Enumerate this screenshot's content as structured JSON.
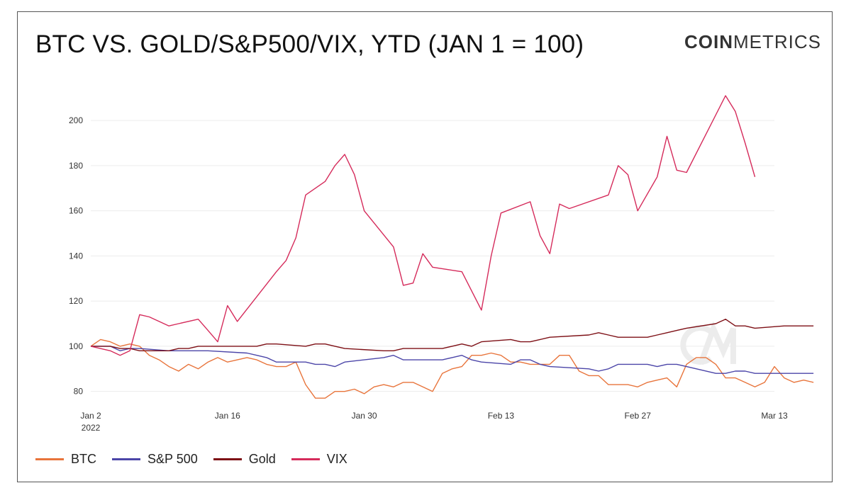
{
  "title": "BTC VS. GOLD/S&P500/VIX, YTD (JAN 1 = 100)",
  "logo": {
    "bold_part": "COIN",
    "regular_part": "METRICS"
  },
  "chart_data": {
    "type": "line",
    "title": "BTC VS. GOLD/S&P500/VIX, YTD (JAN 1 = 100)",
    "xlabel": "",
    "ylabel": "",
    "x_range": [
      "2022-01-02",
      "2022-03-13"
    ],
    "ylim": [
      73,
      222
    ],
    "yticks": [
      80,
      100,
      120,
      140,
      160,
      180,
      200
    ],
    "xticks": [
      {
        "date": "2022-01-02",
        "label": "Jan 2",
        "sublabel": "2022"
      },
      {
        "date": "2022-01-16",
        "label": "Jan 16",
        "sublabel": ""
      },
      {
        "date": "2022-01-30",
        "label": "Jan 30",
        "sublabel": ""
      },
      {
        "date": "2022-02-13",
        "label": "Feb 13",
        "sublabel": ""
      },
      {
        "date": "2022-02-27",
        "label": "Feb 27",
        "sublabel": ""
      },
      {
        "date": "2022-03-13",
        "label": "Mar 13",
        "sublabel": ""
      }
    ],
    "grid": true,
    "legend_position": "bottom-left",
    "series": [
      {
        "name": "BTC",
        "color": "#e8743b",
        "points": [
          [
            "2022-01-02",
            100
          ],
          [
            "2022-01-03",
            103
          ],
          [
            "2022-01-04",
            102
          ],
          [
            "2022-01-05",
            100
          ],
          [
            "2022-01-06",
            101
          ],
          [
            "2022-01-07",
            100
          ],
          [
            "2022-01-08",
            96
          ],
          [
            "2022-01-09",
            94
          ],
          [
            "2022-01-10",
            91
          ],
          [
            "2022-01-11",
            89
          ],
          [
            "2022-01-12",
            92
          ],
          [
            "2022-01-13",
            90
          ],
          [
            "2022-01-14",
            93
          ],
          [
            "2022-01-15",
            95
          ],
          [
            "2022-01-16",
            93
          ],
          [
            "2022-01-17",
            94
          ],
          [
            "2022-01-18",
            95
          ],
          [
            "2022-01-19",
            94
          ],
          [
            "2022-01-20",
            92
          ],
          [
            "2022-01-21",
            91
          ],
          [
            "2022-01-22",
            91
          ],
          [
            "2022-01-23",
            93
          ],
          [
            "2022-01-24",
            83
          ],
          [
            "2022-01-25",
            77
          ],
          [
            "2022-01-26",
            77
          ],
          [
            "2022-01-27",
            80
          ],
          [
            "2022-01-28",
            80
          ],
          [
            "2022-01-29",
            81
          ],
          [
            "2022-01-30",
            79
          ],
          [
            "2022-01-31",
            82
          ],
          [
            "2022-02-01",
            83
          ],
          [
            "2022-02-02",
            82
          ],
          [
            "2022-02-03",
            84
          ],
          [
            "2022-02-04",
            84
          ],
          [
            "2022-02-05",
            82
          ],
          [
            "2022-02-06",
            80
          ],
          [
            "2022-02-07",
            88
          ],
          [
            "2022-02-08",
            90
          ],
          [
            "2022-02-09",
            91
          ],
          [
            "2022-02-10",
            96
          ],
          [
            "2022-02-11",
            96
          ],
          [
            "2022-02-12",
            97
          ],
          [
            "2022-02-13",
            96
          ],
          [
            "2022-02-14",
            93
          ],
          [
            "2022-02-15",
            93
          ],
          [
            "2022-02-16",
            92
          ],
          [
            "2022-02-17",
            92
          ],
          [
            "2022-02-18",
            92
          ],
          [
            "2022-02-19",
            96
          ],
          [
            "2022-02-20",
            96
          ],
          [
            "2022-02-21",
            89
          ],
          [
            "2022-02-22",
            87
          ],
          [
            "2022-02-23",
            87
          ],
          [
            "2022-02-24",
            83
          ],
          [
            "2022-02-25",
            83
          ],
          [
            "2022-02-26",
            83
          ],
          [
            "2022-02-27",
            82
          ],
          [
            "2022-02-28",
            84
          ],
          [
            "2022-03-01",
            85
          ],
          [
            "2022-03-02",
            86
          ],
          [
            "2022-03-03",
            82
          ],
          [
            "2022-03-04",
            92
          ],
          [
            "2022-03-05",
            95
          ],
          [
            "2022-03-06",
            95
          ],
          [
            "2022-03-07",
            92
          ],
          [
            "2022-03-08",
            86
          ],
          [
            "2022-03-09",
            86
          ],
          [
            "2022-03-10",
            84
          ],
          [
            "2022-03-11",
            82
          ],
          [
            "2022-03-12",
            84
          ],
          [
            "2022-03-13",
            91
          ],
          [
            "2022-03-14",
            86
          ],
          [
            "2022-03-15",
            84
          ],
          [
            "2022-03-16",
            85
          ],
          [
            "2022-03-17",
            84
          ]
        ]
      },
      {
        "name": "S&P 500",
        "color": "#4b45a8",
        "points": [
          [
            "2022-01-02",
            100
          ],
          [
            "2022-01-04",
            100
          ],
          [
            "2022-01-05",
            98
          ],
          [
            "2022-01-06",
            99
          ],
          [
            "2022-01-07",
            99
          ],
          [
            "2022-01-10",
            98
          ],
          [
            "2022-01-11",
            98
          ],
          [
            "2022-01-12",
            98
          ],
          [
            "2022-01-13",
            98
          ],
          [
            "2022-01-14",
            98
          ],
          [
            "2022-01-18",
            97
          ],
          [
            "2022-01-19",
            96
          ],
          [
            "2022-01-20",
            95
          ],
          [
            "2022-01-21",
            93
          ],
          [
            "2022-01-24",
            93
          ],
          [
            "2022-01-25",
            92
          ],
          [
            "2022-01-26",
            92
          ],
          [
            "2022-01-27",
            91
          ],
          [
            "2022-01-28",
            93
          ],
          [
            "2022-02-01",
            95
          ],
          [
            "2022-02-02",
            96
          ],
          [
            "2022-02-03",
            94
          ],
          [
            "2022-02-04",
            94
          ],
          [
            "2022-02-07",
            94
          ],
          [
            "2022-02-08",
            95
          ],
          [
            "2022-02-09",
            96
          ],
          [
            "2022-02-10",
            94
          ],
          [
            "2022-02-11",
            93
          ],
          [
            "2022-02-14",
            92
          ],
          [
            "2022-02-15",
            94
          ],
          [
            "2022-02-16",
            94
          ],
          [
            "2022-02-17",
            92
          ],
          [
            "2022-02-18",
            91
          ],
          [
            "2022-02-22",
            90
          ],
          [
            "2022-02-23",
            89
          ],
          [
            "2022-02-24",
            90
          ],
          [
            "2022-02-25",
            92
          ],
          [
            "2022-02-28",
            92
          ],
          [
            "2022-03-01",
            91
          ],
          [
            "2022-03-02",
            92
          ],
          [
            "2022-03-03",
            92
          ],
          [
            "2022-03-04",
            91
          ],
          [
            "2022-03-07",
            88
          ],
          [
            "2022-03-08",
            88
          ],
          [
            "2022-03-09",
            89
          ],
          [
            "2022-03-10",
            89
          ],
          [
            "2022-03-11",
            88
          ],
          [
            "2022-03-14",
            88
          ],
          [
            "2022-03-15",
            88
          ],
          [
            "2022-03-16",
            88
          ],
          [
            "2022-03-17",
            88
          ]
        ]
      },
      {
        "name": "Gold",
        "color": "#7d0f15",
        "points": [
          [
            "2022-01-02",
            100
          ],
          [
            "2022-01-04",
            100
          ],
          [
            "2022-01-05",
            99
          ],
          [
            "2022-01-06",
            99
          ],
          [
            "2022-01-07",
            98
          ],
          [
            "2022-01-10",
            98
          ],
          [
            "2022-01-11",
            99
          ],
          [
            "2022-01-12",
            99
          ],
          [
            "2022-01-13",
            100
          ],
          [
            "2022-01-14",
            100
          ],
          [
            "2022-01-18",
            100
          ],
          [
            "2022-01-19",
            100
          ],
          [
            "2022-01-20",
            101
          ],
          [
            "2022-01-21",
            101
          ],
          [
            "2022-01-24",
            100
          ],
          [
            "2022-01-25",
            101
          ],
          [
            "2022-01-26",
            101
          ],
          [
            "2022-01-27",
            100
          ],
          [
            "2022-01-28",
            99
          ],
          [
            "2022-02-01",
            98
          ],
          [
            "2022-02-02",
            98
          ],
          [
            "2022-02-03",
            99
          ],
          [
            "2022-02-04",
            99
          ],
          [
            "2022-02-07",
            99
          ],
          [
            "2022-02-08",
            100
          ],
          [
            "2022-02-09",
            101
          ],
          [
            "2022-02-10",
            100
          ],
          [
            "2022-02-11",
            102
          ],
          [
            "2022-02-14",
            103
          ],
          [
            "2022-02-15",
            102
          ],
          [
            "2022-02-16",
            102
          ],
          [
            "2022-02-17",
            103
          ],
          [
            "2022-02-18",
            104
          ],
          [
            "2022-02-22",
            105
          ],
          [
            "2022-02-23",
            106
          ],
          [
            "2022-02-24",
            105
          ],
          [
            "2022-02-25",
            104
          ],
          [
            "2022-02-28",
            104
          ],
          [
            "2022-03-01",
            105
          ],
          [
            "2022-03-02",
            106
          ],
          [
            "2022-03-03",
            107
          ],
          [
            "2022-03-04",
            108
          ],
          [
            "2022-03-07",
            110
          ],
          [
            "2022-03-08",
            112
          ],
          [
            "2022-03-09",
            109
          ],
          [
            "2022-03-10",
            109
          ],
          [
            "2022-03-11",
            108
          ],
          [
            "2022-03-14",
            109
          ],
          [
            "2022-03-15",
            109
          ],
          [
            "2022-03-16",
            109
          ],
          [
            "2022-03-17",
            109
          ]
        ]
      },
      {
        "name": "VIX",
        "color": "#d52b5b",
        "points": [
          [
            "2022-01-02",
            100
          ],
          [
            "2022-01-04",
            98
          ],
          [
            "2022-01-05",
            96
          ],
          [
            "2022-01-06",
            98
          ],
          [
            "2022-01-07",
            114
          ],
          [
            "2022-01-08",
            113
          ],
          [
            "2022-01-10",
            109
          ],
          [
            "2022-01-11",
            110
          ],
          [
            "2022-01-13",
            112
          ],
          [
            "2022-01-14",
            107
          ],
          [
            "2022-01-15",
            102
          ],
          [
            "2022-01-16",
            118
          ],
          [
            "2022-01-17",
            111
          ],
          [
            "2022-01-21",
            133
          ],
          [
            "2022-01-22",
            138
          ],
          [
            "2022-01-23",
            148
          ],
          [
            "2022-01-24",
            167
          ],
          [
            "2022-01-26",
            173
          ],
          [
            "2022-01-27",
            180
          ],
          [
            "2022-01-28",
            185
          ],
          [
            "2022-01-29",
            176
          ],
          [
            "2022-01-30",
            160
          ],
          [
            "2022-02-02",
            144
          ],
          [
            "2022-02-03",
            127
          ],
          [
            "2022-02-04",
            128
          ],
          [
            "2022-02-05",
            141
          ],
          [
            "2022-02-06",
            135
          ],
          [
            "2022-02-09",
            133
          ],
          [
            "2022-02-11",
            116
          ],
          [
            "2022-02-12",
            140
          ],
          [
            "2022-02-13",
            159
          ],
          [
            "2022-02-16",
            164
          ],
          [
            "2022-02-17",
            149
          ],
          [
            "2022-02-18",
            141
          ],
          [
            "2022-02-19",
            163
          ],
          [
            "2022-02-20",
            161
          ],
          [
            "2022-02-24",
            167
          ],
          [
            "2022-02-25",
            180
          ],
          [
            "2022-02-26",
            176
          ],
          [
            "2022-02-27",
            160
          ],
          [
            "2022-03-01",
            175
          ],
          [
            "2022-03-02",
            193
          ],
          [
            "2022-03-03",
            178
          ],
          [
            "2022-03-04",
            177
          ],
          [
            "2022-03-08",
            211
          ],
          [
            "2022-03-09",
            204
          ],
          [
            "2022-03-10",
            190
          ],
          [
            "2022-03-11",
            175
          ]
        ]
      }
    ]
  }
}
